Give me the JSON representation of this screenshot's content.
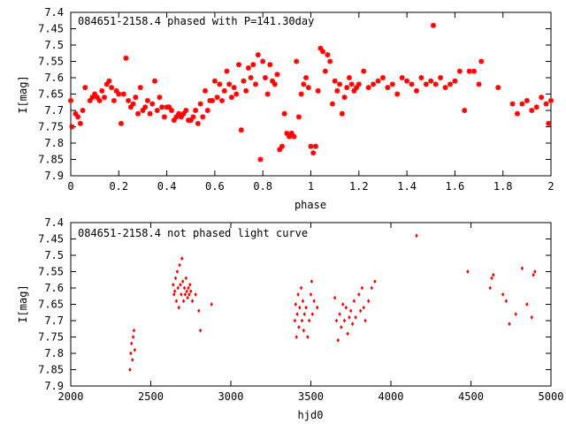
{
  "chart_data": [
    {
      "type": "scatter",
      "title": "084651-2158.4 phased with P=141.30day",
      "xlabel": "phase",
      "ylabel": "I[mag]",
      "xlim": [
        0,
        2
      ],
      "ylim": [
        7.9,
        7.4
      ],
      "y_inverted": true,
      "grid": false,
      "x_ticks": [
        "0",
        "0.2",
        "0.4",
        "0.6",
        "0.8",
        "1",
        "1.2",
        "1.4",
        "1.6",
        "1.8",
        "2"
      ],
      "y_ticks": [
        "7.4",
        "7.45",
        "7.5",
        "7.55",
        "7.6",
        "7.65",
        "7.7",
        "7.75",
        "7.8",
        "7.85",
        "7.9"
      ],
      "marker": "star",
      "color": "#ff0000",
      "points": [
        [
          0.0,
          7.67
        ],
        [
          0.005,
          7.75
        ],
        [
          0.02,
          7.71
        ],
        [
          0.03,
          7.72
        ],
        [
          0.04,
          7.74
        ],
        [
          0.05,
          7.7
        ],
        [
          0.06,
          7.63
        ],
        [
          0.08,
          7.67
        ],
        [
          0.09,
          7.66
        ],
        [
          0.1,
          7.65
        ],
        [
          0.11,
          7.66
        ],
        [
          0.12,
          7.67
        ],
        [
          0.13,
          7.64
        ],
        [
          0.14,
          7.66
        ],
        [
          0.15,
          7.62
        ],
        [
          0.16,
          7.61
        ],
        [
          0.17,
          7.63
        ],
        [
          0.18,
          7.67
        ],
        [
          0.19,
          7.64
        ],
        [
          0.2,
          7.65
        ],
        [
          0.21,
          7.74
        ],
        [
          0.22,
          7.65
        ],
        [
          0.23,
          7.54
        ],
        [
          0.24,
          7.67
        ],
        [
          0.25,
          7.69
        ],
        [
          0.26,
          7.68
        ],
        [
          0.27,
          7.66
        ],
        [
          0.28,
          7.71
        ],
        [
          0.29,
          7.63
        ],
        [
          0.3,
          7.7
        ],
        [
          0.31,
          7.69
        ],
        [
          0.32,
          7.67
        ],
        [
          0.33,
          7.71
        ],
        [
          0.34,
          7.68
        ],
        [
          0.35,
          7.61
        ],
        [
          0.36,
          7.7
        ],
        [
          0.37,
          7.66
        ],
        [
          0.38,
          7.69
        ],
        [
          0.39,
          7.72
        ],
        [
          0.4,
          7.69
        ],
        [
          0.41,
          7.69
        ],
        [
          0.42,
          7.7
        ],
        [
          0.43,
          7.73
        ],
        [
          0.44,
          7.72
        ],
        [
          0.45,
          7.71
        ],
        [
          0.46,
          7.72
        ],
        [
          0.47,
          7.71
        ],
        [
          0.48,
          7.7
        ],
        [
          0.49,
          7.73
        ],
        [
          0.5,
          7.73
        ],
        [
          0.51,
          7.72
        ],
        [
          0.52,
          7.7
        ],
        [
          0.53,
          7.74
        ],
        [
          0.54,
          7.68
        ],
        [
          0.55,
          7.72
        ],
        [
          0.56,
          7.64
        ],
        [
          0.57,
          7.7
        ],
        [
          0.58,
          7.67
        ],
        [
          0.59,
          7.67
        ],
        [
          0.6,
          7.61
        ],
        [
          0.61,
          7.66
        ],
        [
          0.62,
          7.62
        ],
        [
          0.63,
          7.67
        ],
        [
          0.64,
          7.64
        ],
        [
          0.65,
          7.58
        ],
        [
          0.66,
          7.62
        ],
        [
          0.67,
          7.66
        ],
        [
          0.68,
          7.63
        ],
        [
          0.69,
          7.65
        ],
        [
          0.7,
          7.56
        ],
        [
          0.71,
          7.76
        ],
        [
          0.72,
          7.61
        ],
        [
          0.73,
          7.64
        ],
        [
          0.74,
          7.57
        ],
        [
          0.75,
          7.6
        ],
        [
          0.76,
          7.56
        ],
        [
          0.77,
          7.62
        ],
        [
          0.78,
          7.53
        ],
        [
          0.79,
          7.85
        ],
        [
          0.8,
          7.55
        ],
        [
          0.81,
          7.6
        ],
        [
          0.82,
          7.65
        ],
        [
          0.83,
          7.56
        ],
        [
          0.84,
          7.61
        ],
        [
          0.85,
          7.62
        ],
        [
          0.86,
          7.59
        ],
        [
          0.87,
          7.82
        ],
        [
          0.88,
          7.81
        ],
        [
          0.89,
          7.71
        ],
        [
          0.9,
          7.77
        ],
        [
          0.91,
          7.78
        ],
        [
          0.92,
          7.77
        ],
        [
          0.93,
          7.78
        ],
        [
          0.94,
          7.55
        ],
        [
          0.95,
          7.72
        ],
        [
          0.96,
          7.65
        ],
        [
          0.97,
          7.62
        ],
        [
          0.98,
          7.6
        ],
        [
          0.99,
          7.63
        ],
        [
          1.0,
          7.81
        ],
        [
          1.01,
          7.83
        ],
        [
          1.02,
          7.81
        ],
        [
          1.03,
          7.64
        ],
        [
          1.04,
          7.51
        ],
        [
          1.05,
          7.52
        ],
        [
          1.06,
          7.58
        ],
        [
          1.07,
          7.53
        ],
        [
          1.08,
          7.55
        ],
        [
          1.09,
          7.68
        ],
        [
          1.1,
          7.61
        ],
        [
          1.11,
          7.64
        ],
        [
          1.12,
          7.62
        ],
        [
          1.13,
          7.71
        ],
        [
          1.14,
          7.66
        ],
        [
          1.15,
          7.63
        ],
        [
          1.16,
          7.6
        ],
        [
          1.17,
          7.62
        ],
        [
          1.18,
          7.64
        ],
        [
          1.19,
          7.63
        ],
        [
          1.2,
          7.62
        ],
        [
          1.22,
          7.58
        ],
        [
          1.24,
          7.63
        ],
        [
          1.26,
          7.62
        ],
        [
          1.28,
          7.61
        ],
        [
          1.3,
          7.6
        ],
        [
          1.32,
          7.63
        ],
        [
          1.34,
          7.62
        ],
        [
          1.36,
          7.65
        ],
        [
          1.38,
          7.6
        ],
        [
          1.4,
          7.61
        ],
        [
          1.42,
          7.62
        ],
        [
          1.44,
          7.64
        ],
        [
          1.46,
          7.6
        ],
        [
          1.48,
          7.62
        ],
        [
          1.5,
          7.61
        ],
        [
          1.51,
          7.44
        ],
        [
          1.52,
          7.62
        ],
        [
          1.54,
          7.6
        ],
        [
          1.56,
          7.63
        ],
        [
          1.58,
          7.62
        ],
        [
          1.6,
          7.61
        ],
        [
          1.62,
          7.58
        ],
        [
          1.64,
          7.7
        ],
        [
          1.66,
          7.58
        ],
        [
          1.68,
          7.58
        ],
        [
          1.7,
          7.62
        ],
        [
          1.71,
          7.55
        ],
        [
          1.78,
          7.63
        ],
        [
          1.84,
          7.68
        ],
        [
          1.86,
          7.71
        ],
        [
          1.88,
          7.68
        ],
        [
          1.9,
          7.67
        ],
        [
          1.92,
          7.7
        ],
        [
          1.94,
          7.69
        ],
        [
          1.96,
          7.66
        ],
        [
          1.98,
          7.68
        ],
        [
          1.99,
          7.74
        ],
        [
          2.0,
          7.67
        ]
      ]
    },
    {
      "type": "scatter",
      "title": "084651-2158.4 not phased light curve",
      "xlabel": "hjd0",
      "ylabel": "I[mag]",
      "xlim": [
        2000,
        5000
      ],
      "ylim": [
        7.9,
        7.4
      ],
      "y_inverted": true,
      "grid": false,
      "x_ticks": [
        "2000",
        "2500",
        "3000",
        "3500",
        "4000",
        "4500",
        "5000"
      ],
      "y_ticks": [
        "7.4",
        "7.45",
        "7.5",
        "7.55",
        "7.6",
        "7.65",
        "7.7",
        "7.75",
        "7.8",
        "7.85",
        "7.9"
      ],
      "marker": "diamond",
      "color": "#ff0000",
      "points": [
        [
          2370,
          7.85
        ],
        [
          2375,
          7.8
        ],
        [
          2380,
          7.77
        ],
        [
          2385,
          7.82
        ],
        [
          2390,
          7.75
        ],
        [
          2395,
          7.73
        ],
        [
          2400,
          7.79
        ],
        [
          2640,
          7.59
        ],
        [
          2645,
          7.62
        ],
        [
          2650,
          7.61
        ],
        [
          2655,
          7.57
        ],
        [
          2660,
          7.64
        ],
        [
          2665,
          7.55
        ],
        [
          2670,
          7.6
        ],
        [
          2675,
          7.66
        ],
        [
          2680,
          7.53
        ],
        [
          2685,
          7.59
        ],
        [
          2690,
          7.62
        ],
        [
          2695,
          7.51
        ],
        [
          2700,
          7.58
        ],
        [
          2705,
          7.64
        ],
        [
          2710,
          7.6
        ],
        [
          2715,
          7.62
        ],
        [
          2720,
          7.57
        ],
        [
          2725,
          7.61
        ],
        [
          2730,
          7.63
        ],
        [
          2735,
          7.6
        ],
        [
          2740,
          7.62
        ],
        [
          2745,
          7.59
        ],
        [
          2750,
          7.61
        ],
        [
          2760,
          7.64
        ],
        [
          2780,
          7.62
        ],
        [
          2800,
          7.67
        ],
        [
          2810,
          7.73
        ],
        [
          2880,
          7.65
        ],
        [
          3400,
          7.7
        ],
        [
          3405,
          7.65
        ],
        [
          3410,
          7.75
        ],
        [
          3415,
          7.68
        ],
        [
          3420,
          7.62
        ],
        [
          3425,
          7.72
        ],
        [
          3430,
          7.66
        ],
        [
          3440,
          7.6
        ],
        [
          3445,
          7.7
        ],
        [
          3450,
          7.64
        ],
        [
          3455,
          7.73
        ],
        [
          3460,
          7.68
        ],
        [
          3470,
          7.66
        ],
        [
          3480,
          7.75
        ],
        [
          3490,
          7.7
        ],
        [
          3500,
          7.62
        ],
        [
          3505,
          7.58
        ],
        [
          3510,
          7.68
        ],
        [
          3520,
          7.64
        ],
        [
          3540,
          7.66
        ],
        [
          3650,
          7.63
        ],
        [
          3660,
          7.7
        ],
        [
          3670,
          7.76
        ],
        [
          3680,
          7.68
        ],
        [
          3690,
          7.72
        ],
        [
          3700,
          7.65
        ],
        [
          3710,
          7.7
        ],
        [
          3720,
          7.66
        ],
        [
          3730,
          7.74
        ],
        [
          3740,
          7.69
        ],
        [
          3750,
          7.67
        ],
        [
          3760,
          7.71
        ],
        [
          3770,
          7.64
        ],
        [
          3780,
          7.69
        ],
        [
          3800,
          7.62
        ],
        [
          3810,
          7.67
        ],
        [
          3820,
          7.6
        ],
        [
          3830,
          7.66
        ],
        [
          3840,
          7.7
        ],
        [
          3860,
          7.64
        ],
        [
          3880,
          7.6
        ],
        [
          3900,
          7.58
        ],
        [
          4160,
          7.44
        ],
        [
          4480,
          7.55
        ],
        [
          4620,
          7.6
        ],
        [
          4630,
          7.57
        ],
        [
          4640,
          7.56
        ],
        [
          4700,
          7.62
        ],
        [
          4720,
          7.64
        ],
        [
          4740,
          7.71
        ],
        [
          4780,
          7.68
        ],
        [
          4820,
          7.54
        ],
        [
          4850,
          7.65
        ],
        [
          4880,
          7.69
        ],
        [
          4890,
          7.56
        ],
        [
          4900,
          7.55
        ]
      ]
    }
  ]
}
